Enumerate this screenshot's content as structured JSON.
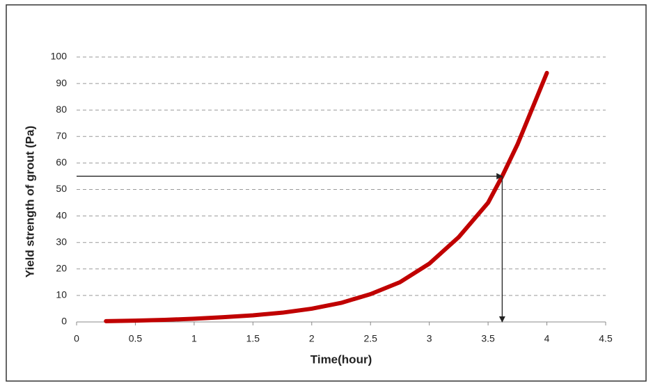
{
  "chart_data": {
    "type": "line",
    "x_label": "Time(hour)",
    "y_label": "Yield strength of grout (Pa)",
    "x": [
      0.25,
      0.5,
      0.75,
      1,
      1.25,
      1.5,
      1.75,
      2,
      2.25,
      2.5,
      2.75,
      3,
      3.25,
      3.5,
      3.62,
      3.75,
      4
    ],
    "series": [
      {
        "name": "Yield strength",
        "color": "#c00000",
        "values": [
          0.3,
          0.5,
          0.8,
          1.2,
          1.8,
          2.5,
          3.5,
          5,
          7.2,
          10.5,
          15,
          22,
          32,
          45,
          55,
          67,
          94
        ]
      }
    ],
    "marker": {
      "x": 3.62,
      "y": 55
    },
    "xlim": [
      0,
      4.5
    ],
    "xticks": [
      0,
      0.5,
      1,
      1.5,
      2,
      2.5,
      3,
      3.5,
      4,
      4.5
    ],
    "ylim": [
      0,
      100
    ],
    "yticks": [
      0,
      10,
      20,
      30,
      40,
      50,
      60,
      70,
      80,
      90,
      100
    ],
    "grid": true
  }
}
